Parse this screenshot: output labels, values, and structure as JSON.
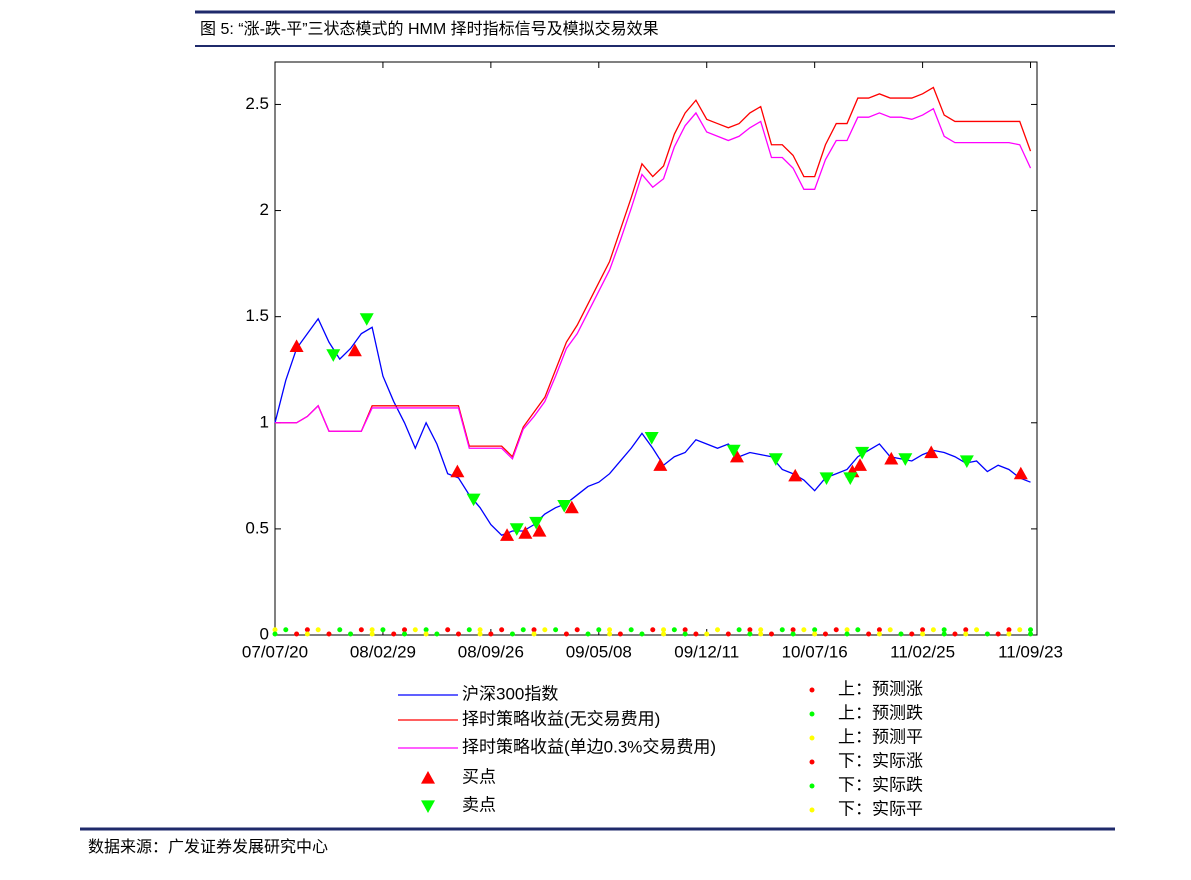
{
  "title": "图 5: “涨-跌-平”三状态模式的 HMM 择时指标信号及模拟交易效果",
  "source": "数据来源：广发证券发展研究中心",
  "chart_data": {
    "type": "line",
    "xlim": [
      0,
      70.6
    ],
    "xticks": [
      {
        "value": 0,
        "label": "07/07/20"
      },
      {
        "value": 10,
        "label": "08/02/29"
      },
      {
        "value": 20,
        "label": "08/09/26"
      },
      {
        "value": 30,
        "label": "09/05/08"
      },
      {
        "value": 40,
        "label": "09/12/11"
      },
      {
        "value": 50,
        "label": "10/07/16"
      },
      {
        "value": 60,
        "label": "11/02/25"
      },
      {
        "value": 70,
        "label": "11/09/23"
      }
    ],
    "ylim": [
      0,
      2.7
    ],
    "yticks": [
      0,
      0.5,
      1,
      1.5,
      2,
      2.5
    ],
    "x": [
      0,
      1,
      2,
      3,
      4,
      5,
      6,
      7,
      8,
      9,
      10,
      11,
      12,
      13,
      14,
      15,
      16,
      17,
      18,
      19,
      20,
      21,
      22,
      23,
      24,
      25,
      26,
      27,
      28,
      29,
      30,
      31,
      32,
      33,
      34,
      35,
      36,
      37,
      38,
      39,
      40,
      41,
      42,
      43,
      44,
      45,
      46,
      47,
      48,
      49,
      50,
      51,
      52,
      53,
      54,
      55,
      56,
      57,
      58,
      59,
      60,
      61,
      62,
      63,
      64,
      65,
      66,
      67,
      68,
      69,
      70
    ],
    "series": [
      {
        "name": "沪深300指数",
        "color": "#0000ff",
        "marker": "line",
        "values": [
          1.0,
          1.2,
          1.35,
          1.42,
          1.49,
          1.38,
          1.3,
          1.35,
          1.42,
          1.45,
          1.22,
          1.1,
          1.0,
          0.88,
          1.0,
          0.9,
          0.76,
          0.74,
          0.66,
          0.6,
          0.52,
          0.47,
          0.49,
          0.49,
          0.52,
          0.57,
          0.6,
          0.62,
          0.66,
          0.7,
          0.72,
          0.76,
          0.82,
          0.88,
          0.95,
          0.88,
          0.8,
          0.84,
          0.86,
          0.92,
          0.9,
          0.88,
          0.9,
          0.84,
          0.86,
          0.85,
          0.84,
          0.78,
          0.76,
          0.73,
          0.68,
          0.74,
          0.76,
          0.78,
          0.84,
          0.87,
          0.9,
          0.84,
          0.83,
          0.82,
          0.85,
          0.87,
          0.86,
          0.84,
          0.81,
          0.82,
          0.77,
          0.8,
          0.78,
          0.74,
          0.72
        ]
      },
      {
        "name": "择时策略收益(无交易费用)",
        "color": "#ff0000",
        "marker": "line",
        "values": [
          1.0,
          1.0,
          1.0,
          1.03,
          1.08,
          0.96,
          0.96,
          0.96,
          0.96,
          1.08,
          1.08,
          1.08,
          1.08,
          1.08,
          1.08,
          1.08,
          1.08,
          1.08,
          0.89,
          0.89,
          0.89,
          0.89,
          0.84,
          0.98,
          1.05,
          1.12,
          1.25,
          1.38,
          1.46,
          1.56,
          1.66,
          1.76,
          1.91,
          2.06,
          2.22,
          2.16,
          2.21,
          2.36,
          2.46,
          2.52,
          2.43,
          2.41,
          2.39,
          2.41,
          2.46,
          2.49,
          2.31,
          2.31,
          2.26,
          2.16,
          2.16,
          2.31,
          2.41,
          2.41,
          2.53,
          2.53,
          2.55,
          2.53,
          2.53,
          2.53,
          2.55,
          2.58,
          2.45,
          2.42,
          2.42,
          2.42,
          2.42,
          2.42,
          2.42,
          2.42,
          2.28
        ]
      },
      {
        "name": "择时策略收益(单边0.3%交易费用)",
        "color": "#ff00ff",
        "marker": "line",
        "values": [
          1.0,
          1.0,
          1.0,
          1.03,
          1.08,
          0.96,
          0.96,
          0.96,
          0.96,
          1.07,
          1.07,
          1.07,
          1.07,
          1.07,
          1.07,
          1.07,
          1.07,
          1.07,
          0.88,
          0.88,
          0.88,
          0.88,
          0.83,
          0.97,
          1.03,
          1.1,
          1.22,
          1.35,
          1.42,
          1.52,
          1.62,
          1.72,
          1.86,
          2.01,
          2.17,
          2.11,
          2.15,
          2.3,
          2.4,
          2.46,
          2.37,
          2.35,
          2.33,
          2.35,
          2.39,
          2.42,
          2.25,
          2.25,
          2.2,
          2.1,
          2.1,
          2.24,
          2.33,
          2.33,
          2.44,
          2.44,
          2.46,
          2.44,
          2.44,
          2.43,
          2.45,
          2.48,
          2.35,
          2.32,
          2.32,
          2.32,
          2.32,
          2.32,
          2.32,
          2.31,
          2.2
        ]
      },
      {
        "name": "买点",
        "color": "#ff0000",
        "marker": "triangle-up",
        "x": [
          2,
          7.4,
          16.9,
          21.5,
          23.2,
          24.5,
          27.5,
          35.7,
          42.8,
          48.2,
          53.5,
          54.2,
          57.1,
          60.8,
          69.1
        ],
        "values": [
          1.36,
          1.34,
          0.77,
          0.47,
          0.48,
          0.49,
          0.6,
          0.8,
          0.84,
          0.75,
          0.77,
          0.8,
          0.83,
          0.86,
          0.76
        ]
      },
      {
        "name": "卖点",
        "color": "#00ff00",
        "marker": "triangle-down",
        "x": [
          5.4,
          8.5,
          18.4,
          22.4,
          24.2,
          26.8,
          34.9,
          42.5,
          46.4,
          51.1,
          53.3,
          54.4,
          58.4,
          64.1
        ],
        "values": [
          1.32,
          1.49,
          0.64,
          0.5,
          0.53,
          0.61,
          0.93,
          0.87,
          0.83,
          0.74,
          0.74,
          0.86,
          0.83,
          0.82
        ]
      },
      {
        "name": "上：预测涨",
        "color": "#ff0000",
        "marker": "dot",
        "x": [
          3,
          8,
          12,
          16,
          21,
          24,
          28,
          35,
          38,
          44,
          48,
          52,
          56,
          60,
          64,
          68
        ],
        "values": [
          0.02,
          0.02,
          0.02,
          0.02,
          0.02,
          0.02,
          0.02,
          0.02,
          0.02,
          0.02,
          0.02,
          0.02,
          0.02,
          0.02,
          0.02,
          0.02
        ]
      },
      {
        "name": "上：预测跌",
        "color": "#00ff00",
        "marker": "dot",
        "x": [
          1,
          6,
          10,
          14,
          18,
          23,
          26,
          30,
          33,
          37,
          43,
          47,
          50,
          54,
          62,
          70
        ],
        "values": [
          0.02,
          0.02,
          0.02,
          0.02,
          0.02,
          0.02,
          0.02,
          0.02,
          0.02,
          0.02,
          0.02,
          0.02,
          0.02,
          0.02,
          0.02,
          0.02
        ]
      },
      {
        "name": "上：预测平",
        "color": "#ffff00",
        "marker": "dot",
        "x": [
          0,
          4,
          9,
          13,
          19,
          25,
          31,
          36,
          41,
          45,
          49,
          53,
          57,
          61,
          65,
          69
        ],
        "values": [
          0.02,
          0.02,
          0.02,
          0.02,
          0.02,
          0.02,
          0.02,
          0.02,
          0.02,
          0.02,
          0.02,
          0.02,
          0.02,
          0.02,
          0.02,
          0.02
        ]
      },
      {
        "name": "下：实际涨",
        "color": "#ff0000",
        "marker": "dot",
        "x": [
          2,
          5,
          11,
          17,
          20,
          27,
          32,
          39,
          42,
          46,
          51,
          55,
          59,
          63,
          67
        ],
        "values": [
          0,
          0,
          0,
          0,
          0,
          0,
          0,
          0,
          0,
          0,
          0,
          0,
          0,
          0,
          0
        ]
      },
      {
        "name": "下：实际跌",
        "color": "#00ff00",
        "marker": "dot",
        "x": [
          0,
          7,
          12,
          15,
          22,
          29,
          34,
          38,
          44,
          48,
          53,
          58,
          62,
          66,
          70
        ],
        "values": [
          0,
          0,
          0,
          0,
          0,
          0,
          0,
          0,
          0,
          0,
          0,
          0,
          0,
          0,
          0
        ]
      },
      {
        "name": "下：实际平",
        "color": "#ffff00",
        "marker": "dot",
        "x": [
          3,
          9,
          14,
          19,
          24,
          31,
          36,
          40,
          45,
          50,
          56,
          60,
          64,
          68
        ],
        "values": [
          0,
          0,
          0,
          0,
          0,
          0,
          0,
          0,
          0,
          0,
          0,
          0,
          0,
          0
        ]
      }
    ]
  }
}
